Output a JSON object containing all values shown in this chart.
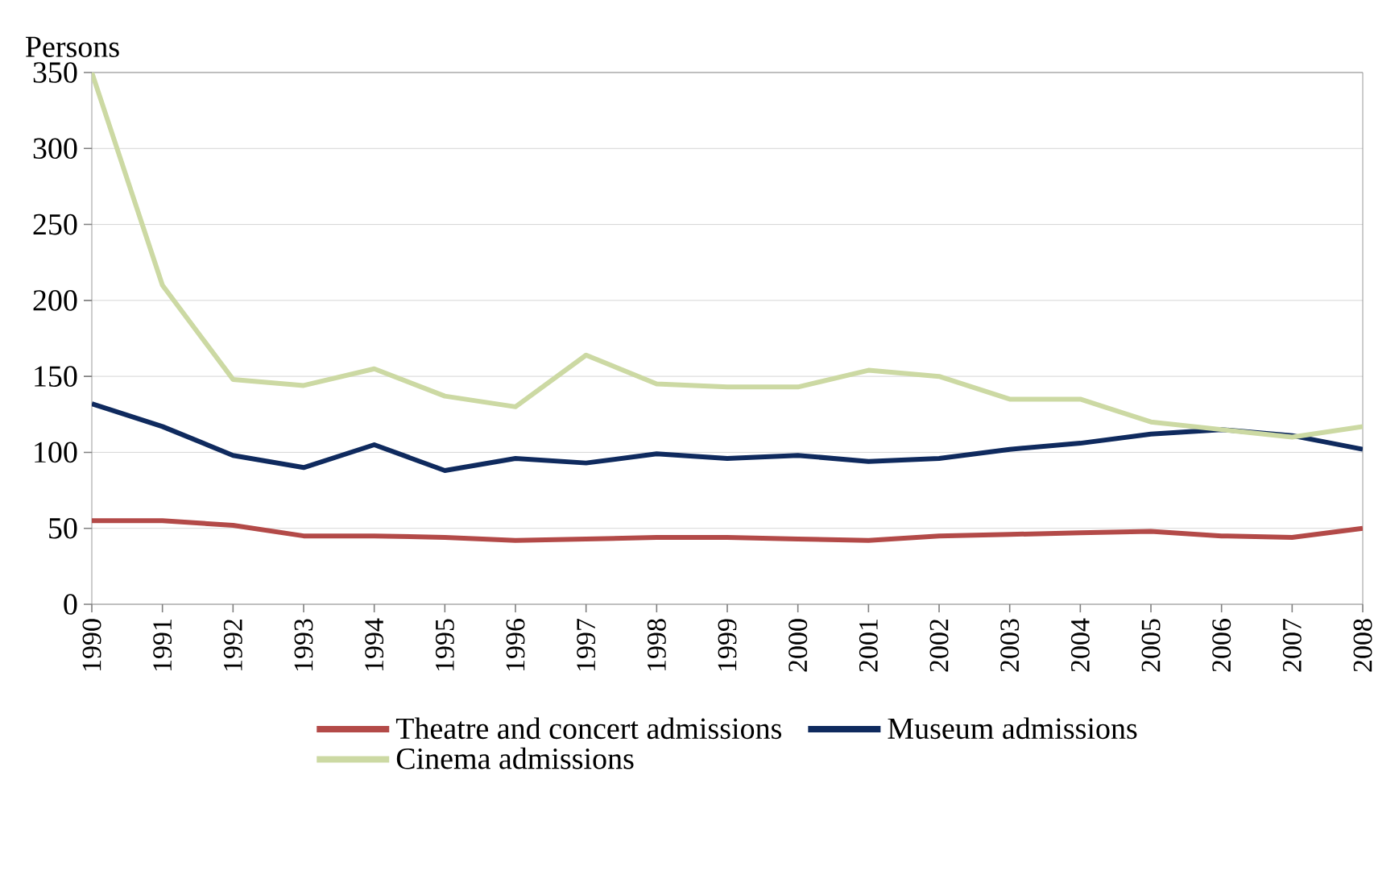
{
  "chart_data": {
    "type": "line",
    "ylabel": "Persons",
    "categories": [
      "1990",
      "1991",
      "1992",
      "1993",
      "1994",
      "1995",
      "1996",
      "1997",
      "1998",
      "1999",
      "2000",
      "2001",
      "2002",
      "2003",
      "2004",
      "2005",
      "2006",
      "2007",
      "2008"
    ],
    "series": [
      {
        "name": "Theatre and concert admissions",
        "color": "#b34a48",
        "values": [
          55,
          55,
          52,
          45,
          45,
          44,
          42,
          43,
          44,
          44,
          43,
          42,
          45,
          46,
          47,
          48,
          45,
          44,
          50
        ]
      },
      {
        "name": "Museum admissions",
        "color": "#0f2a5e",
        "values": [
          132,
          117,
          98,
          90,
          105,
          88,
          96,
          93,
          99,
          96,
          98,
          94,
          96,
          102,
          106,
          112,
          115,
          111,
          102
        ]
      },
      {
        "name": "Cinema admissions",
        "color": "#ccd9a3",
        "values": [
          350,
          210,
          148,
          144,
          155,
          137,
          130,
          164,
          145,
          143,
          143,
          154,
          150,
          135,
          135,
          120,
          115,
          110,
          117
        ]
      }
    ],
    "ylim": [
      0,
      350
    ],
    "yticks": [
      0,
      50,
      100,
      150,
      200,
      250,
      300,
      350
    ],
    "grid": "y",
    "legend": "bottom",
    "marker": "none",
    "line_style": "solid"
  }
}
